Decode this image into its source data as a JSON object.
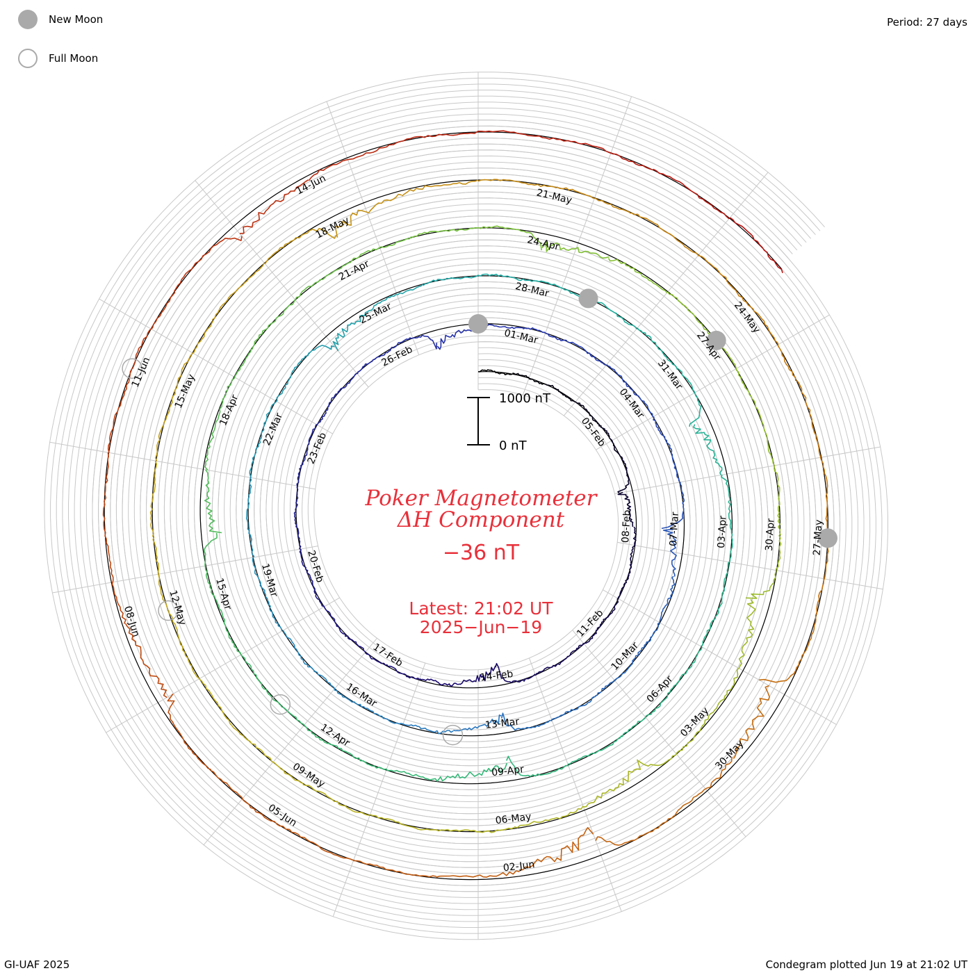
{
  "header": {
    "period_label": "Period: 27 days"
  },
  "legend": {
    "new_moon_label": "New Moon",
    "full_moon_label": "Full Moon",
    "new_moon_color": "#aaaaaa",
    "full_moon_color": "#aaaaaa"
  },
  "footer": {
    "credit": "GI-UAF 2025",
    "plotted": "Condegram plotted Jun 19 at 21:02 UT"
  },
  "center": {
    "title_line1": "Poker Magnetometer",
    "title_line2": "ΔH Component",
    "current_value": "−36 nT",
    "latest_line1": "Latest: 21:02 UT",
    "latest_line2": "2025−Jun−19",
    "text_color": "#e8303a"
  },
  "scale_bar": {
    "top_label": "1000 nT",
    "bottom_label": "0 nT"
  },
  "chart_data": {
    "type": "line",
    "subtype": "spiral condegram",
    "title": "Poker Magnetometer ΔH Component",
    "unit": "nT",
    "period_days": 27,
    "start_date": "2025-02-01",
    "end_date": "2025-06-19",
    "latest_value": -36,
    "scale_bar": [
      0,
      1000
    ],
    "grid": true,
    "date_labels": [
      {
        "label": "05-Feb",
        "day": 4
      },
      {
        "label": "08-Feb",
        "day": 7
      },
      {
        "label": "11-Feb",
        "day": 10
      },
      {
        "label": "14-Feb",
        "day": 13
      },
      {
        "label": "17-Feb",
        "day": 16
      },
      {
        "label": "20-Feb",
        "day": 19
      },
      {
        "label": "23-Feb",
        "day": 22
      },
      {
        "label": "26-Feb",
        "day": 25
      },
      {
        "label": "01-Mar",
        "day": 28
      },
      {
        "label": "04-Mar",
        "day": 31
      },
      {
        "label": "07-Mar",
        "day": 34
      },
      {
        "label": "10-Mar",
        "day": 37
      },
      {
        "label": "13-Mar",
        "day": 40
      },
      {
        "label": "16-Mar",
        "day": 43
      },
      {
        "label": "19-Mar",
        "day": 46
      },
      {
        "label": "22-Mar",
        "day": 49
      },
      {
        "label": "25-Mar",
        "day": 52
      },
      {
        "label": "28-Mar",
        "day": 55
      },
      {
        "label": "31-Mar",
        "day": 58
      },
      {
        "label": "03-Apr",
        "day": 61
      },
      {
        "label": "06-Apr",
        "day": 64
      },
      {
        "label": "09-Apr",
        "day": 67
      },
      {
        "label": "12-Apr",
        "day": 70
      },
      {
        "label": "15-Apr",
        "day": 73
      },
      {
        "label": "18-Apr",
        "day": 76
      },
      {
        "label": "21-Apr",
        "day": 79
      },
      {
        "label": "24-Apr",
        "day": 82
      },
      {
        "label": "27-Apr",
        "day": 85
      },
      {
        "label": "30-Apr",
        "day": 88
      },
      {
        "label": "03-May",
        "day": 91
      },
      {
        "label": "06-May",
        "day": 94
      },
      {
        "label": "09-May",
        "day": 97
      },
      {
        "label": "12-May",
        "day": 100
      },
      {
        "label": "15-May",
        "day": 103
      },
      {
        "label": "18-May",
        "day": 106
      },
      {
        "label": "21-May",
        "day": 109
      },
      {
        "label": "24-May",
        "day": 112
      },
      {
        "label": "27-May",
        "day": 115
      },
      {
        "label": "30-May",
        "day": 118
      },
      {
        "label": "02-Jun",
        "day": 121
      },
      {
        "label": "05-Jun",
        "day": 124
      },
      {
        "label": "08-Jun",
        "day": 127
      },
      {
        "label": "11-Jun",
        "day": 130
      },
      {
        "label": "14-Jun",
        "day": 133
      }
    ],
    "new_moons": [
      "2025-02-28",
      "2025-03-29",
      "2025-04-27",
      "2025-05-27"
    ],
    "full_moons": [
      "2025-03-14",
      "2025-04-13",
      "2025-05-12",
      "2025-06-11"
    ],
    "disturbance_events": [
      {
        "date": "2025-02-07",
        "peak_nT": -350
      },
      {
        "date": "2025-02-14",
        "peak_nT": -550
      },
      {
        "date": "2025-02-27",
        "peak_nT": -450
      },
      {
        "date": "2025-03-07",
        "peak_nT": -500
      },
      {
        "date": "2025-03-13",
        "peak_nT": -450
      },
      {
        "date": "2025-03-24",
        "peak_nT": -400
      },
      {
        "date": "2025-04-01",
        "peak_nT": -500
      },
      {
        "date": "2025-04-09",
        "peak_nT": -550
      },
      {
        "date": "2025-04-16",
        "peak_nT": -450
      },
      {
        "date": "2025-04-24",
        "peak_nT": -400
      },
      {
        "date": "2025-05-01",
        "peak_nT": -600
      },
      {
        "date": "2025-05-04",
        "peak_nT": -450
      },
      {
        "date": "2025-05-18",
        "peak_nT": -500
      },
      {
        "date": "2025-05-29",
        "peak_nT": -650
      },
      {
        "date": "2025-06-01",
        "peak_nT": -750
      },
      {
        "date": "2025-06-07",
        "peak_nT": -450
      },
      {
        "date": "2025-06-13",
        "peak_nT": -400
      }
    ]
  }
}
